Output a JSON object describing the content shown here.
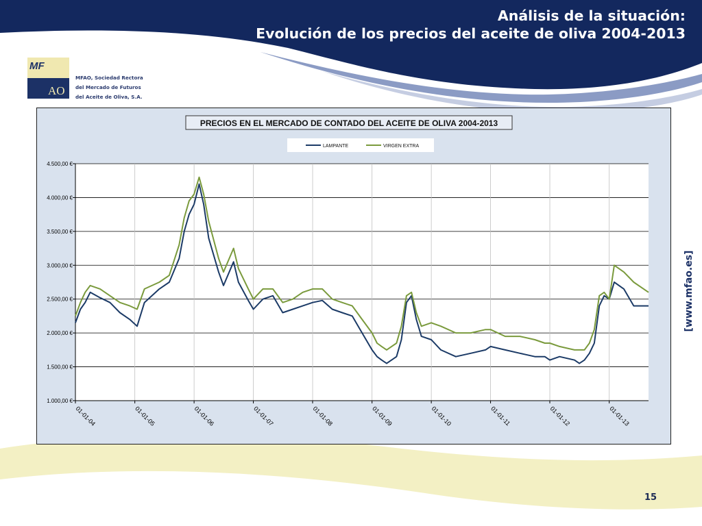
{
  "slide": {
    "title_line1": "Análisis de la situación:",
    "title_line2": "Evolución de los precios del aceite de oliva 2004-2013",
    "page_number": "15",
    "side_url": "[www.mfao.es]"
  },
  "logo": {
    "mark_top": "MF",
    "mark_bottom": "AO",
    "text_lines": [
      "MFAO, Sociedad Rectora",
      "del Mercado de Futuros",
      "del Aceite de Oliva, S.A."
    ]
  },
  "colors": {
    "navy": "#13285e",
    "band": "#8b9bc4",
    "cream": "#f3f0c4",
    "lampante": "#1b3a66",
    "virgen_extra": "#7a9a3c",
    "plot_bg": "#ffffff",
    "chart_bg": "#d9e2ee"
  },
  "chart_data": {
    "type": "line",
    "title": "PRECIOS EN EL MERCADO DE CONTADO DEL ACEITE DE OLIVA 2004-2013",
    "xlabel": "",
    "ylabel": "",
    "ylim": [
      1000,
      4500
    ],
    "xlim": [
      "2004-01-01",
      "2013-08-31"
    ],
    "y_ticks": [
      1000,
      1500,
      2000,
      2500,
      3000,
      3500,
      4000,
      4500
    ],
    "y_tick_labels": [
      "1.000,00 €",
      "1.500,00 €",
      "2.000,00 €",
      "2.500,00 €",
      "3.000,00 €",
      "3.500,00 €",
      "4.000,00 €",
      "4.500,00 €"
    ],
    "x_ticks": [
      "2004-01-01",
      "2005-01-01",
      "2006-01-01",
      "2007-01-01",
      "2008-01-01",
      "2009-01-01",
      "2010-01-01",
      "2011-01-01",
      "2012-01-01",
      "2013-01-01"
    ],
    "x_tick_labels": [
      "01-01-04",
      "01-01-05",
      "01-01-06",
      "01-01-07",
      "01-01-08",
      "01-01-09",
      "01-01-10",
      "01-01-11",
      "01-01-12",
      "01-01-13"
    ],
    "grid": true,
    "legend": "top-center",
    "series": [
      {
        "name": "LAMPANTE",
        "color": "#1b3a66",
        "x": [
          "2004-01-01",
          "2004-02-01",
          "2004-03-01",
          "2004-04-01",
          "2004-06-01",
          "2004-08-01",
          "2004-10-01",
          "2004-12-01",
          "2005-01-15",
          "2005-03-01",
          "2005-06-01",
          "2005-08-01",
          "2005-10-01",
          "2005-11-01",
          "2005-12-01",
          "2006-01-01",
          "2006-02-01",
          "2006-03-01",
          "2006-04-01",
          "2006-06-01",
          "2006-07-01",
          "2006-09-01",
          "2006-10-01",
          "2006-12-01",
          "2007-01-01",
          "2007-03-01",
          "2007-05-01",
          "2007-07-01",
          "2007-09-01",
          "2007-11-01",
          "2008-01-01",
          "2008-03-01",
          "2008-05-01",
          "2008-07-01",
          "2008-09-01",
          "2008-11-01",
          "2009-01-01",
          "2009-02-01",
          "2009-03-01",
          "2009-04-01",
          "2009-06-01",
          "2009-07-01",
          "2009-08-01",
          "2009-09-01",
          "2009-10-01",
          "2009-11-01",
          "2010-01-01",
          "2010-03-01",
          "2010-06-01",
          "2010-09-01",
          "2010-12-01",
          "2011-01-01",
          "2011-04-01",
          "2011-07-01",
          "2011-10-01",
          "2011-12-01",
          "2012-01-01",
          "2012-03-01",
          "2012-06-01",
          "2012-07-01",
          "2012-08-01",
          "2012-09-01",
          "2012-10-01",
          "2012-11-01",
          "2012-12-01",
          "2013-01-01",
          "2013-02-01",
          "2013-04-01",
          "2013-06-01",
          "2013-08-31"
        ],
        "values": [
          2150,
          2350,
          2450,
          2600,
          2520,
          2450,
          2300,
          2200,
          2100,
          2450,
          2650,
          2750,
          3100,
          3500,
          3750,
          3900,
          4200,
          3900,
          3400,
          2900,
          2700,
          3050,
          2750,
          2480,
          2350,
          2500,
          2550,
          2300,
          2350,
          2400,
          2450,
          2480,
          2350,
          2300,
          2250,
          2000,
          1750,
          1650,
          1600,
          1550,
          1650,
          1900,
          2450,
          2550,
          2200,
          1950,
          1900,
          1750,
          1650,
          1700,
          1750,
          1800,
          1750,
          1700,
          1650,
          1650,
          1600,
          1650,
          1600,
          1550,
          1600,
          1700,
          1850,
          2400,
          2550,
          2500,
          2750,
          2650,
          2400,
          2400
        ]
      },
      {
        "name": "VIRGEN EXTRA",
        "color": "#7a9a3c",
        "x": [
          "2004-01-01",
          "2004-02-01",
          "2004-03-01",
          "2004-04-01",
          "2004-06-01",
          "2004-08-01",
          "2004-10-01",
          "2004-12-01",
          "2005-01-15",
          "2005-03-01",
          "2005-06-01",
          "2005-08-01",
          "2005-10-01",
          "2005-11-01",
          "2005-12-01",
          "2006-01-01",
          "2006-02-01",
          "2006-03-01",
          "2006-04-01",
          "2006-06-01",
          "2006-07-01",
          "2006-09-01",
          "2006-10-01",
          "2006-12-01",
          "2007-01-01",
          "2007-03-01",
          "2007-05-01",
          "2007-07-01",
          "2007-09-01",
          "2007-11-01",
          "2008-01-01",
          "2008-03-01",
          "2008-05-01",
          "2008-07-01",
          "2008-09-01",
          "2008-11-01",
          "2009-01-01",
          "2009-02-01",
          "2009-03-01",
          "2009-04-01",
          "2009-06-01",
          "2009-07-01",
          "2009-08-01",
          "2009-09-01",
          "2009-10-01",
          "2009-11-01",
          "2010-01-01",
          "2010-03-01",
          "2010-06-01",
          "2010-09-01",
          "2010-12-01",
          "2011-01-01",
          "2011-04-01",
          "2011-07-01",
          "2011-10-01",
          "2011-12-01",
          "2012-01-01",
          "2012-03-01",
          "2012-06-01",
          "2012-07-01",
          "2012-08-01",
          "2012-09-01",
          "2012-10-01",
          "2012-11-01",
          "2012-12-01",
          "2013-01-01",
          "2013-02-01",
          "2013-04-01",
          "2013-06-01",
          "2013-08-31"
        ],
        "values": [
          2250,
          2450,
          2600,
          2700,
          2650,
          2550,
          2450,
          2400,
          2350,
          2650,
          2750,
          2850,
          3300,
          3700,
          3950,
          4050,
          4300,
          4050,
          3650,
          3100,
          2900,
          3250,
          2950,
          2650,
          2500,
          2650,
          2650,
          2450,
          2500,
          2600,
          2650,
          2650,
          2500,
          2450,
          2400,
          2200,
          2000,
          1850,
          1800,
          1750,
          1850,
          2100,
          2550,
          2600,
          2300,
          2100,
          2150,
          2100,
          2000,
          2000,
          2050,
          2050,
          1950,
          1950,
          1900,
          1850,
          1850,
          1800,
          1750,
          1750,
          1750,
          1850,
          2050,
          2550,
          2600,
          2500,
          3000,
          2900,
          2750,
          2600
        ]
      }
    ]
  }
}
